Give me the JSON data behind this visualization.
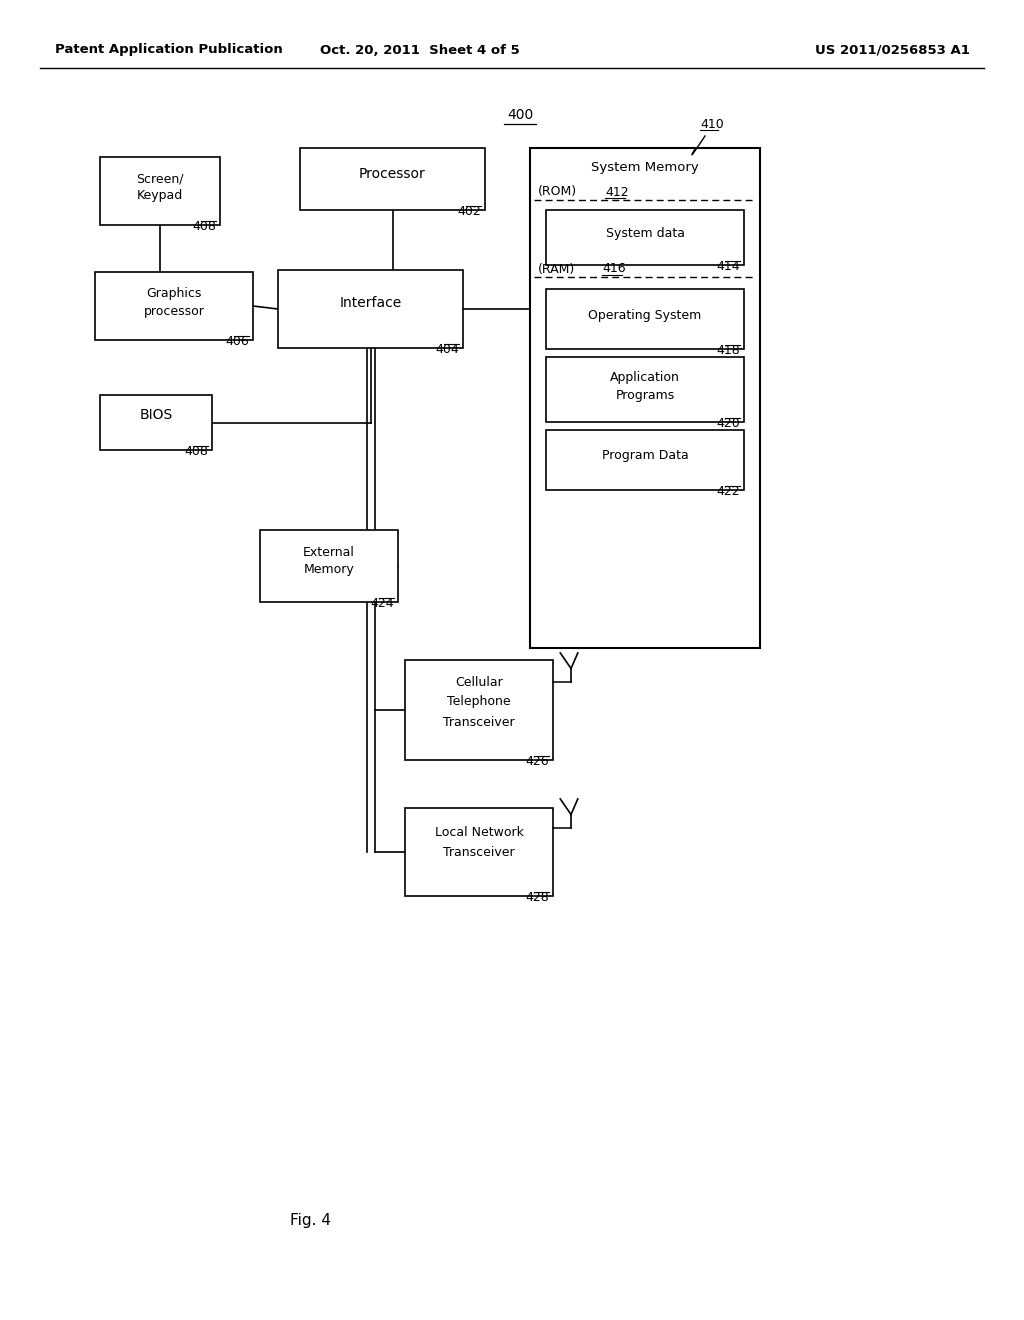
{
  "bg_color": "#ffffff",
  "header_left": "Patent Application Publication",
  "header_mid": "Oct. 20, 2011  Sheet 4 of 5",
  "header_right": "US 2011/0256853 A1",
  "fig_label": "Fig. 4",
  "diagram_label": "400"
}
